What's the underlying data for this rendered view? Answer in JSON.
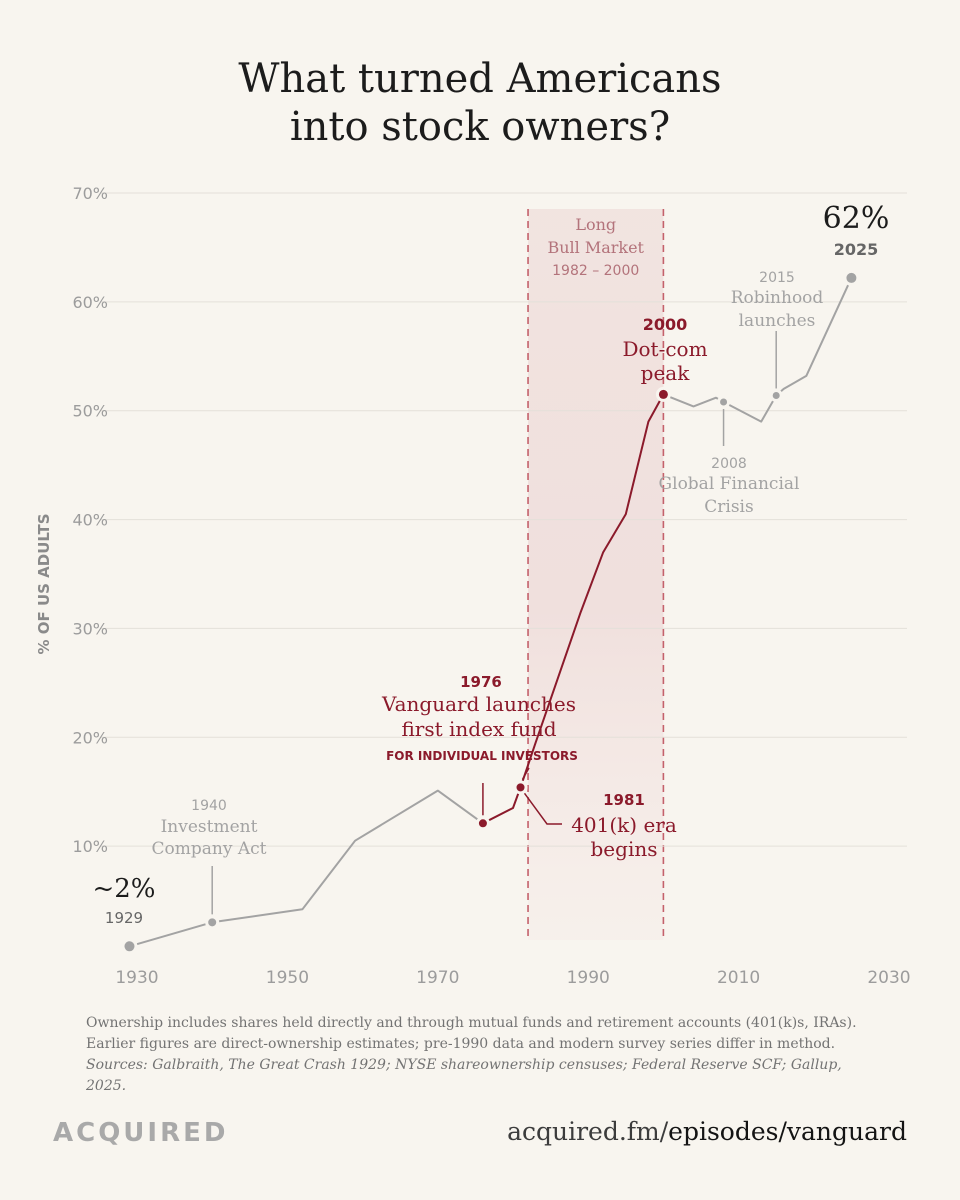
{
  "title": {
    "line1": "What turned Americans",
    "line2": "into stock owners?"
  },
  "colors": {
    "gray": "#a3a3a3",
    "red": "#8b1a2b",
    "shade": "#f1e2e0",
    "grid": "#e4e0d9",
    "text_gray": "#999999"
  },
  "chart_data": {
    "type": "line",
    "ylabel": "% OF US ADULTS",
    "xlim": [
      1928,
      2030
    ],
    "ylim": [
      0,
      70
    ],
    "x_ticks": [
      1930,
      1950,
      1970,
      1990,
      2010,
      2030
    ],
    "y_ticks": [
      10,
      20,
      30,
      40,
      50,
      60,
      70
    ],
    "y_tick_labels": [
      "10%",
      "20%",
      "30%",
      "40%",
      "50%",
      "60%",
      "70%"
    ],
    "grid": true,
    "shaded_region": {
      "x": [
        1982,
        2000
      ],
      "label_lines": [
        "Long",
        "Bull Market"
      ],
      "years": "1982 – 2000"
    },
    "series": [
      {
        "segment": "pre-1976",
        "color": "#a3a3a3",
        "x": [
          1929,
          1940,
          1952,
          1959,
          1970,
          1976
        ],
        "y": [
          0.8,
          3,
          4.2,
          10.5,
          15.1,
          12.1
        ]
      },
      {
        "segment": "1976-2000",
        "color": "#8b1a2b",
        "x": [
          1976,
          1980,
          1981,
          1983,
          1989,
          1992,
          1995,
          1998,
          2000
        ],
        "y": [
          12.1,
          13.5,
          15.4,
          19.5,
          31.5,
          37,
          40.5,
          49,
          51.5
        ]
      },
      {
        "segment": "post-2000",
        "color": "#a3a3a3",
        "x": [
          2000,
          2004,
          2007,
          2008,
          2013,
          2015,
          2016,
          2019,
          2025
        ],
        "y": [
          51.5,
          50.4,
          51.2,
          50.8,
          49,
          51.4,
          52,
          53.2,
          62.2
        ]
      }
    ],
    "annotations": [
      {
        "id": "start",
        "big": "~2%",
        "year": "1929",
        "x": 1929,
        "y": 0.8
      },
      {
        "id": "ica",
        "year": "1940",
        "lines": [
          "Investment",
          "Company Act"
        ],
        "x": 1940,
        "y": 3
      },
      {
        "id": "vanguard",
        "year": "1976",
        "lines": [
          "Vanguard launches",
          "first index fund"
        ],
        "sub": "FOR INDIVIDUAL INVESTORS",
        "x": 1976,
        "y": 12.1
      },
      {
        "id": "k401",
        "year": "1981",
        "lines": [
          "401(k) era",
          "begins"
        ],
        "x": 1981,
        "y": 15.4
      },
      {
        "id": "dotcom",
        "year": "2000",
        "lines": [
          "Dot-com",
          "peak"
        ],
        "x": 2000,
        "y": 51.5
      },
      {
        "id": "gfc",
        "year": "2008",
        "lines": [
          "Global Financial",
          "Crisis"
        ],
        "x": 2008,
        "y": 50.8
      },
      {
        "id": "robinhood",
        "year": "2015",
        "lines": [
          "Robinhood",
          "launches"
        ],
        "x": 2015,
        "y": 51.4
      },
      {
        "id": "end",
        "big": "62%",
        "year": "2025",
        "x": 2025,
        "y": 62.2
      }
    ]
  },
  "footnote": {
    "line1": "Ownership includes shares held directly and through mutual funds and retirement accounts (401(k)s, IRAs).",
    "line2": "Earlier figures are direct-ownership estimates; pre-1990 data and modern survey series differ in method.",
    "sources": "Sources: Galbraith, The Great Crash 1929; NYSE shareownership censuses; Federal Reserve SCF; Gallup, 2025."
  },
  "brand": "ACQUIRED",
  "link": {
    "base": "acquired.fm/",
    "path": "episodes/vanguard"
  }
}
